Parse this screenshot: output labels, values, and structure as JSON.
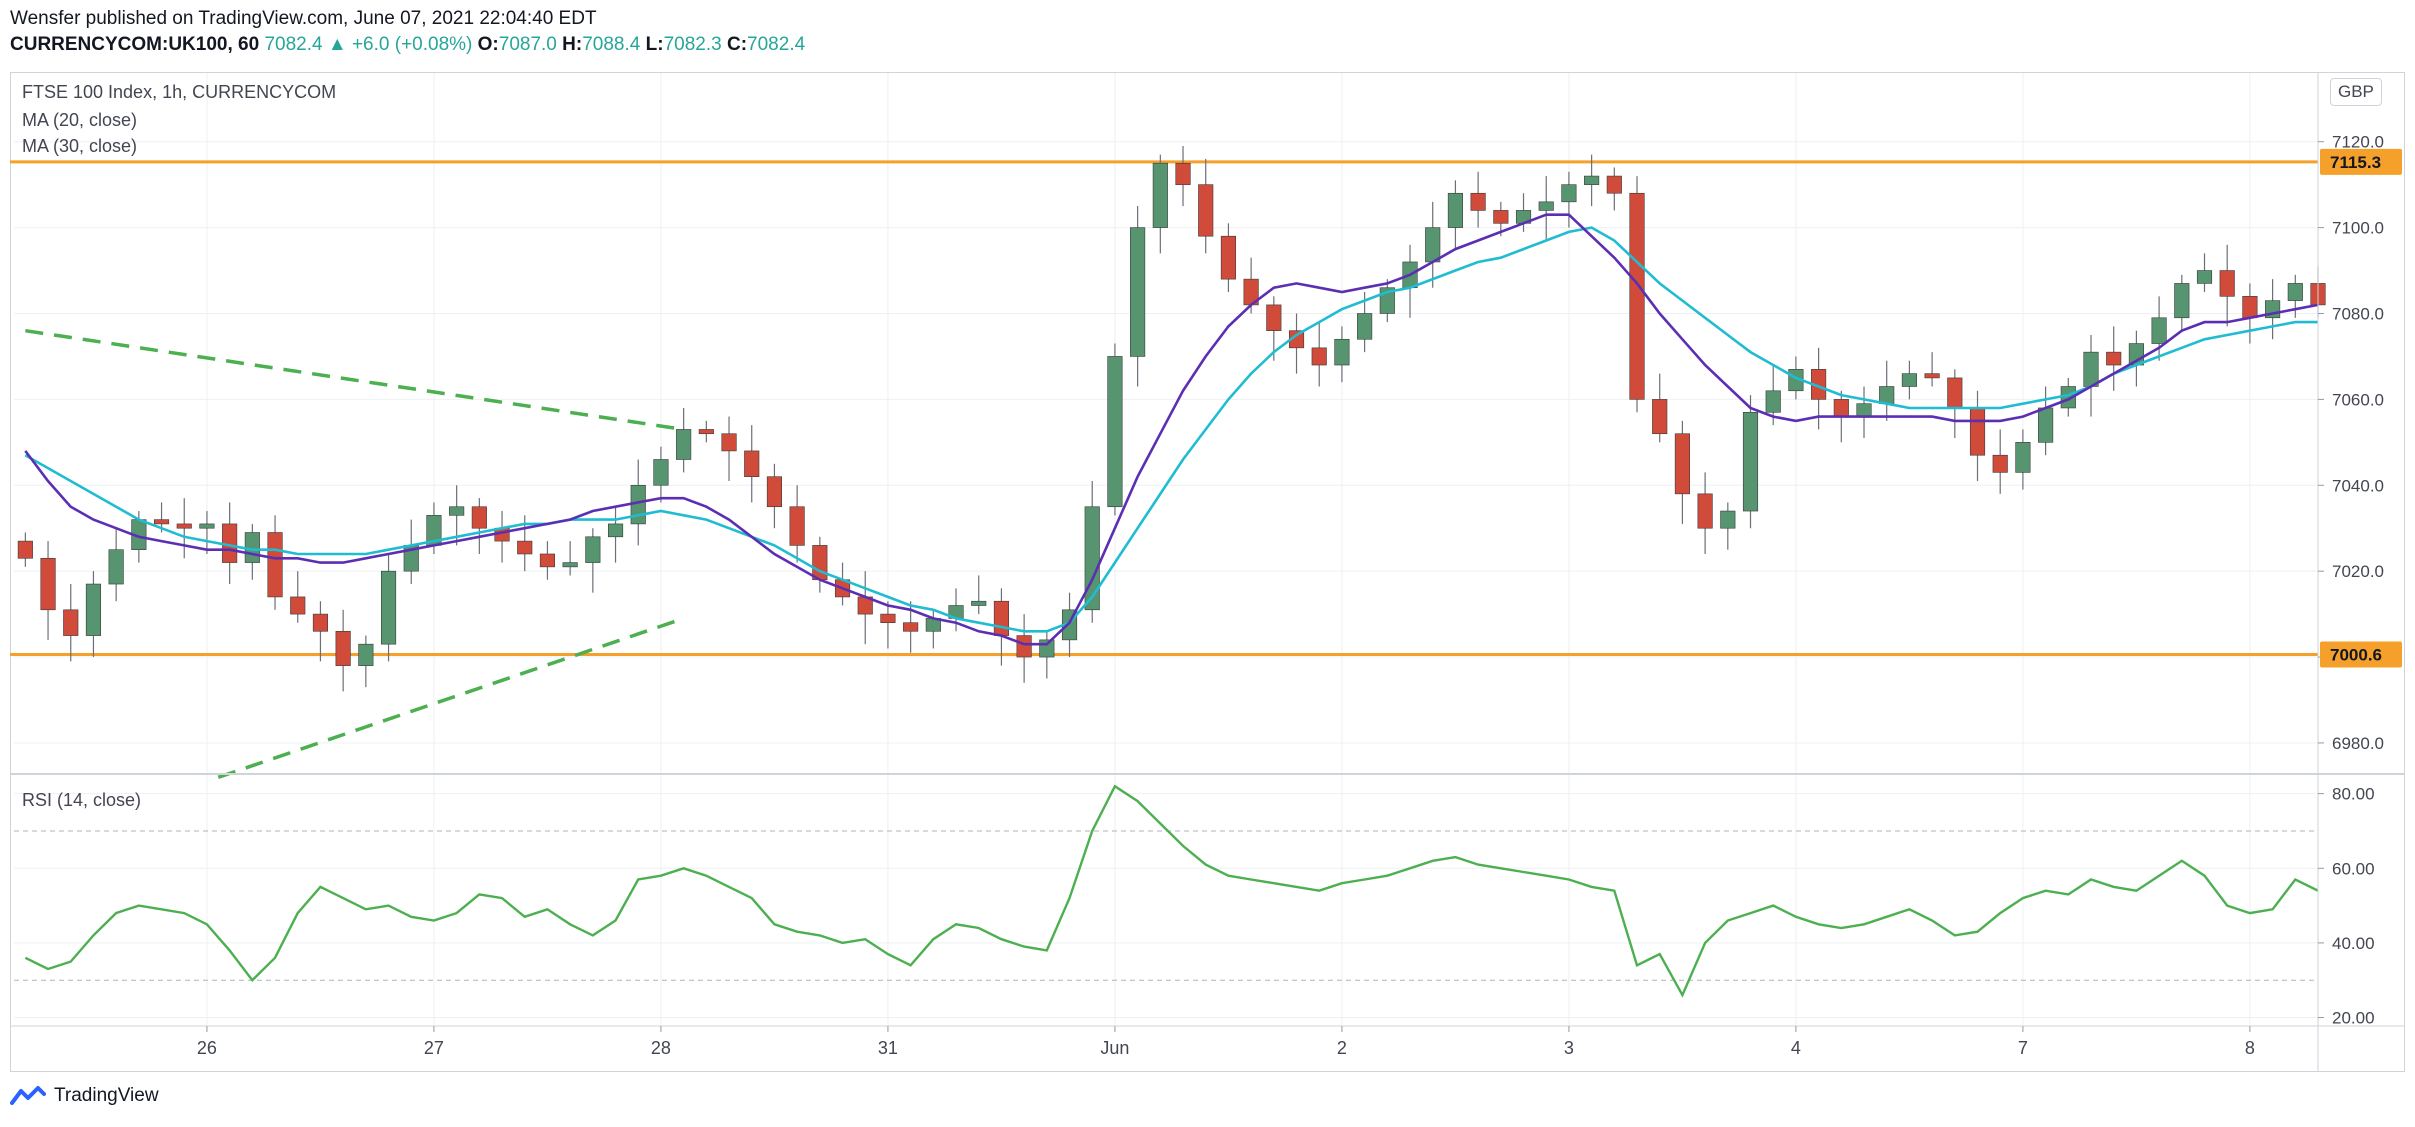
{
  "header": {
    "published_line": "Wensfer published on TradingView.com, June 07, 2021 22:04:40 EDT",
    "symbol": "CURRENCYCOM:UK100, 60",
    "last": "7082.4",
    "change_arrow": "▲",
    "change": "+6.0 (+0.08%)",
    "o_label": "O:",
    "o_value": "7087.0",
    "h_label": "H:",
    "h_value": "7088.4",
    "l_label": "L:",
    "l_value": "7082.3",
    "c_label": "C:",
    "c_value": "7082.4"
  },
  "legend": {
    "title": "FTSE 100 Index, 1h, CURRENCYCOM",
    "ma20": "MA (20, close)",
    "ma30": "MA (30, close)",
    "rsi": "RSI (14, close)",
    "currency": "GBP"
  },
  "footer": {
    "brand": "TradingView"
  },
  "colors": {
    "up": "#56956f",
    "down": "#d04b3a",
    "ma20": "#5b2eb3",
    "ma30": "#1fbcd2",
    "hline": "#f5a02a",
    "trend": "#4caf50",
    "rsi": "#4caf50",
    "grid": "#eef0f3"
  },
  "chart_data": [
    {
      "type": "candlestick",
      "title": "FTSE 100 Index, 1h, CURRENCYCOM",
      "ylabel": "GBP",
      "ylim": [
        6973,
        7136
      ],
      "yticks": [
        "6980.0",
        "7000.0",
        "7020.0",
        "7040.0",
        "7060.0",
        "7080.0",
        "7100.0",
        "7120.0"
      ],
      "ytick_values": [
        6980,
        7000,
        7020,
        7040,
        7060,
        7080,
        7100,
        7120
      ],
      "xticks": [
        "26",
        "27",
        "28",
        "31",
        "Jun",
        "2",
        "3",
        "4",
        "7",
        "8"
      ],
      "xtick_bar_index": [
        8,
        18,
        28,
        38,
        48,
        58,
        68,
        78,
        88,
        98
      ],
      "horizontal_lines": [
        {
          "label": "7115.3",
          "value": 7115.3
        },
        {
          "label": "7000.6",
          "value": 7000.6
        }
      ],
      "trendlines": [
        {
          "name": "upper",
          "from": {
            "bar": 0,
            "value": 7076
          },
          "to": {
            "bar": 29,
            "value": 7053
          }
        },
        {
          "name": "lower",
          "from": {
            "bar": 8.5,
            "value": 6972
          },
          "to": {
            "bar": 29,
            "value": 7009
          }
        }
      ],
      "series": [
        {
          "name": "close",
          "values": [
            7023,
            7011,
            7005,
            7017,
            7025,
            7032,
            7031,
            7030,
            7031,
            7022,
            7029,
            7014,
            7010,
            7006,
            6998,
            7003,
            7020,
            7026,
            7033,
            7035,
            7030,
            7027,
            7024,
            7021,
            7022,
            7028,
            7031,
            7040,
            7046,
            7053,
            7052,
            7048,
            7042,
            7035,
            7026,
            7018,
            7014,
            7010,
            7008,
            7006,
            7009,
            7012,
            7013,
            7005,
            7000,
            7004,
            7011,
            7035,
            7070,
            7100,
            7115,
            7110,
            7098,
            7088,
            7082,
            7076,
            7072,
            7068,
            7074,
            7080,
            7086,
            7092,
            7100,
            7108,
            7104,
            7101,
            7104,
            7106,
            7110,
            7112,
            7108,
            7060,
            7052,
            7038,
            7030,
            7034,
            7057,
            7062,
            7067,
            7060,
            7056,
            7059,
            7063,
            7066,
            7065,
            7058,
            7047,
            7043,
            7050,
            7058,
            7063,
            7071,
            7068,
            7073,
            7079,
            7087,
            7090,
            7084,
            7079,
            7083,
            7087,
            7082
          ]
        },
        {
          "name": "MA (20, close)",
          "values": [
            7048,
            7041,
            7035,
            7032,
            7030,
            7028,
            7027,
            7026,
            7025,
            7025,
            7024,
            7023,
            7023,
            7022,
            7022,
            7023,
            7024,
            7025,
            7026,
            7027,
            7028,
            7029,
            7030,
            7031,
            7032,
            7034,
            7035,
            7036,
            7037,
            7037,
            7035,
            7032,
            7028,
            7024,
            7021,
            7018,
            7016,
            7014,
            7012,
            7011,
            7009,
            7008,
            7006,
            7005,
            7003,
            7003,
            7008,
            7018,
            7030,
            7042,
            7052,
            7062,
            7070,
            7077,
            7082,
            7086,
            7087,
            7086,
            7085,
            7086,
            7087,
            7089,
            7092,
            7095,
            7097,
            7099,
            7101,
            7103,
            7103,
            7098,
            7093,
            7087,
            7080,
            7074,
            7068,
            7063,
            7058,
            7056,
            7055,
            7056,
            7056,
            7056,
            7056,
            7056,
            7056,
            7055,
            7055,
            7055,
            7056,
            7058,
            7060,
            7063,
            7066,
            7069,
            7072,
            7076,
            7078,
            7078,
            7079,
            7080,
            7081,
            7082
          ]
        },
        {
          "name": "MA (30, close)",
          "values": [
            7047,
            7044,
            7041,
            7038,
            7035,
            7032,
            7030,
            7028,
            7027,
            7026,
            7025,
            7025,
            7024,
            7024,
            7024,
            7024,
            7025,
            7026,
            7027,
            7028,
            7029,
            7030,
            7031,
            7031,
            7032,
            7032,
            7032,
            7033,
            7034,
            7033,
            7032,
            7030,
            7028,
            7026,
            7023,
            7020,
            7018,
            7016,
            7014,
            7012,
            7011,
            7009,
            7008,
            7007,
            7006,
            7006,
            7008,
            7014,
            7022,
            7030,
            7038,
            7046,
            7053,
            7060,
            7066,
            7071,
            7075,
            7078,
            7081,
            7083,
            7085,
            7086,
            7088,
            7090,
            7092,
            7093,
            7095,
            7097,
            7099,
            7100,
            7097,
            7092,
            7087,
            7083,
            7079,
            7075,
            7071,
            7068,
            7065,
            7063,
            7061,
            7060,
            7059,
            7058,
            7058,
            7058,
            7058,
            7058,
            7059,
            7060,
            7061,
            7063,
            7066,
            7068,
            7070,
            7072,
            7074,
            7075,
            7076,
            7077,
            7078,
            7078
          ]
        }
      ]
    },
    {
      "type": "line",
      "title": "RSI (14, close)",
      "ylim": [
        18,
        85
      ],
      "yticks": [
        "20.00",
        "40.00",
        "60.00",
        "80.00"
      ],
      "ytick_values": [
        20,
        40,
        60,
        80
      ],
      "bands": [
        30,
        70
      ],
      "series": [
        {
          "name": "RSI (14, close)",
          "values": [
            36,
            33,
            35,
            42,
            48,
            50,
            49,
            48,
            45,
            38,
            30,
            36,
            48,
            55,
            52,
            49,
            50,
            47,
            46,
            48,
            53,
            52,
            47,
            49,
            45,
            42,
            46,
            57,
            58,
            60,
            58,
            55,
            52,
            45,
            43,
            42,
            40,
            41,
            37,
            34,
            41,
            45,
            44,
            41,
            39,
            38,
            52,
            70,
            82,
            78,
            72,
            66,
            61,
            58,
            57,
            56,
            55,
            54,
            56,
            57,
            58,
            60,
            62,
            63,
            61,
            60,
            59,
            58,
            57,
            55,
            54,
            34,
            37,
            26,
            40,
            46,
            48,
            50,
            47,
            45,
            44,
            45,
            47,
            49,
            46,
            42,
            43,
            48,
            52,
            54,
            53,
            57,
            55,
            54,
            58,
            62,
            58,
            50,
            48,
            49,
            57,
            54
          ]
        }
      ]
    }
  ]
}
